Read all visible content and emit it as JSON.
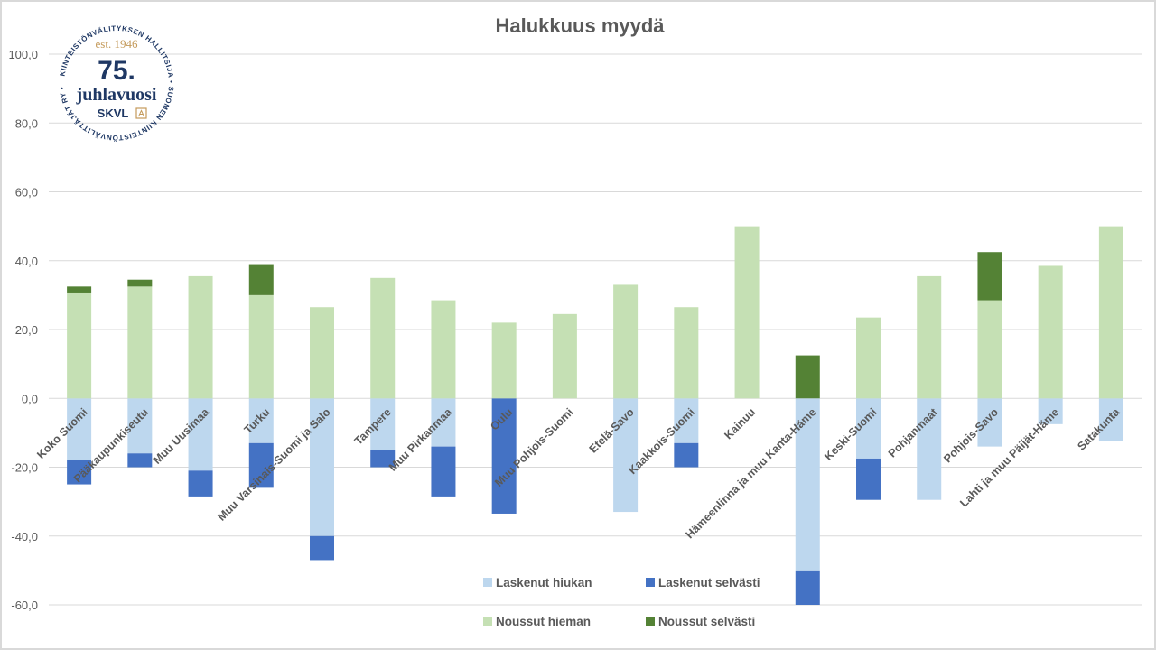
{
  "colors": {
    "laskenut_hiukan": "#bdd7ee",
    "laskenut_selvasti": "#4472c4",
    "noussut_hieman": "#c5e0b4",
    "noussut_selvasti": "#548235",
    "grid": "#d9d9d9",
    "text": "#595959",
    "logo_blue": "#1f3864",
    "logo_gold": "#c49a5a"
  },
  "logo": {
    "ring_text": "KIINTEISTÖNVÄLITYKSEN HALLITSIJA • SUOMEN KIINTEISTÖNVÄLITTÄJÄT RY •",
    "est": "est. 1946",
    "number": "75.",
    "word": "juhlavuosi",
    "brand": "SKVL"
  },
  "chart_data": {
    "type": "bar",
    "stacked": true,
    "title": "Halukkuus myydä",
    "xlabel": "",
    "ylabel": "",
    "ylim": [
      -60,
      100
    ],
    "yticks": [
      -60,
      -40,
      -20,
      0,
      20,
      40,
      60,
      80,
      100
    ],
    "ytick_labels": [
      "-60,0",
      "-40,0",
      "-20,0",
      "0,0",
      "20,0",
      "40,0",
      "60,0",
      "80,0",
      "100,0"
    ],
    "grid": true,
    "legend_position": "bottom-center",
    "categories": [
      "Koko Suomi",
      "Pääkaupunkiseutu",
      "Muu Uusimaa",
      "Turku",
      "Muu Varsinais-Suomi ja Salo",
      "Tampere",
      "Muu Pirkanmaa",
      "Oulu",
      "Muu Pohjois-Suomi",
      "Etelä-Savo",
      "Kaakkois-Suomi",
      "Kainuu",
      "Hämeenlinna ja muu Kanta-Häme",
      "Keski-Suomi",
      "Pohjanmaat",
      "Pohjois-Savo",
      "Lahti ja muu Päijät-Häme",
      "Satakunta"
    ],
    "series": [
      {
        "name": "Laskenut hiukan",
        "values": [
          -18,
          -16,
          -21,
          -13,
          -40,
          -15,
          -14,
          0,
          0,
          -33,
          -13,
          0,
          -50,
          -17.5,
          -29.5,
          -14,
          -7.5,
          -12.5
        ]
      },
      {
        "name": "Laskenut selvästi",
        "values": [
          -7,
          -4,
          -7.5,
          -13,
          -7,
          -5,
          -14.5,
          -33.5,
          0,
          0,
          -7,
          0,
          -10,
          -12,
          0,
          0,
          0,
          0
        ]
      },
      {
        "name": "Noussut hieman",
        "values": [
          30.5,
          32.5,
          35.5,
          30,
          26.5,
          35,
          28.5,
          22,
          24.5,
          33,
          26.5,
          50,
          0,
          23.5,
          35.5,
          28.5,
          38.5,
          50
        ]
      },
      {
        "name": "Noussut selvästi",
        "values": [
          2,
          2,
          0,
          9,
          0,
          0,
          0,
          0,
          0,
          0,
          0,
          0,
          12.5,
          0,
          0,
          14,
          0,
          0
        ]
      }
    ]
  }
}
